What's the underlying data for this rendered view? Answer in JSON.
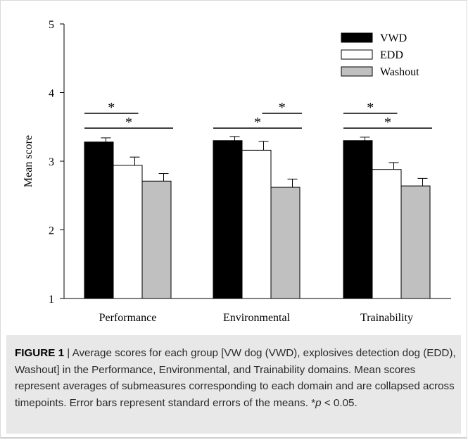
{
  "chart_data": {
    "type": "bar",
    "ylabel": "Mean score",
    "xlabel": "",
    "ylim": [
      1,
      5
    ],
    "yticks": [
      "1",
      "2",
      "3",
      "4",
      "5"
    ],
    "categories": [
      "Performance",
      "Environmental",
      "Trainability"
    ],
    "series": [
      {
        "name": "VWD",
        "color": "#000000",
        "values": [
          3.28,
          3.3,
          3.3
        ],
        "errors": [
          0.06,
          0.06,
          0.05
        ]
      },
      {
        "name": "EDD",
        "color": "#ffffff",
        "values": [
          2.94,
          3.16,
          2.88
        ],
        "errors": [
          0.12,
          0.13,
          0.1
        ]
      },
      {
        "name": "Washout",
        "color": "#c0c0c0",
        "values": [
          2.71,
          2.62,
          2.64
        ],
        "errors": [
          0.11,
          0.12,
          0.11
        ]
      }
    ],
    "significance": [
      {
        "category": "Performance",
        "upper": "VWD-EDD",
        "lower": "VWD-Washout",
        "symbol": "*"
      },
      {
        "category": "Environmental",
        "upper": "EDD-Washout",
        "lower": "VWD-Washout",
        "symbol": "*"
      },
      {
        "category": "Trainability",
        "upper": "VWD-EDD",
        "lower": "VWD-Washout",
        "symbol": "*"
      }
    ],
    "legend": "top-right",
    "grid": false
  },
  "caption": {
    "label": "FIGURE 1",
    "text_a": " | Average scores for each group [VW dog (VWD), explosives detection dog (EDD), Washout] in the Performance, Environmental, and Trainability domains. Mean scores represent averages of submeasures corresponding to each domain and are collapsed across timepoints. Error bars represent standard errors of the means. *",
    "p_symbol": "p",
    "text_b": " < 0.05."
  }
}
